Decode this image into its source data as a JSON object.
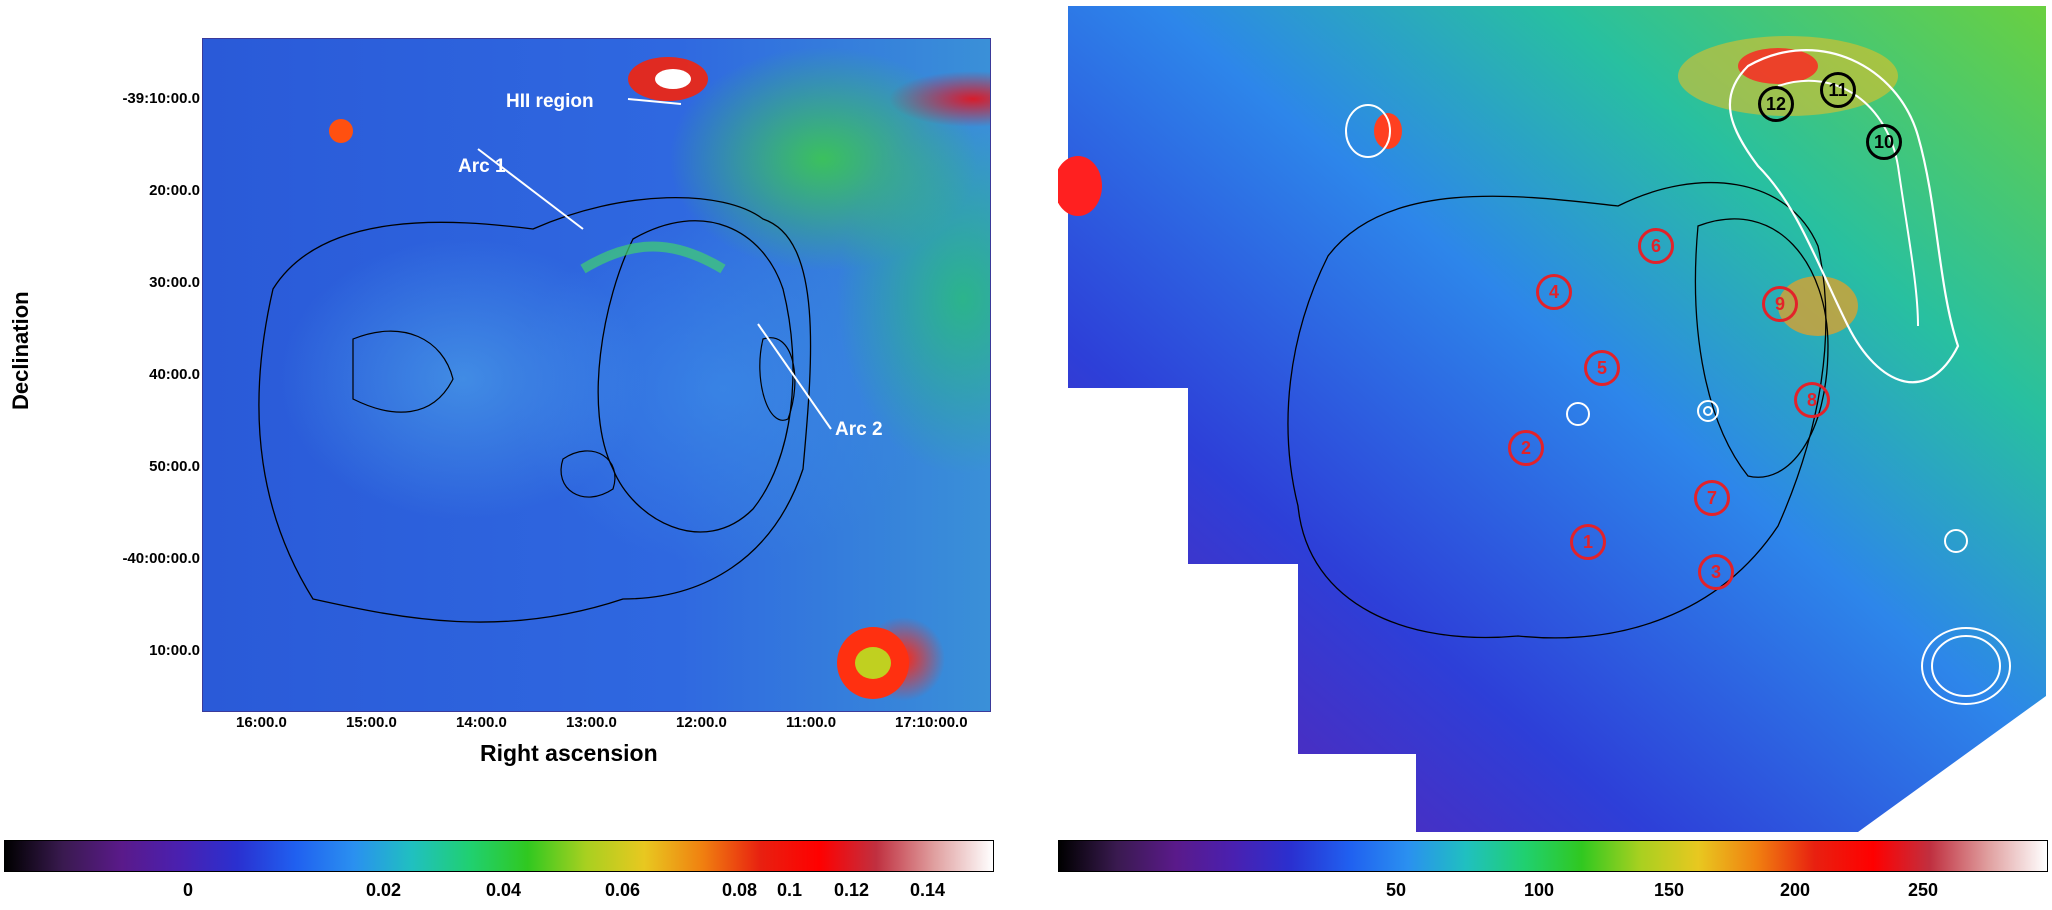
{
  "left_panel": {
    "annotations": [
      {
        "text": "HII region"
      },
      {
        "text": "Arc 1"
      },
      {
        "text": "Arc 2"
      }
    ],
    "ylabel": "Declination",
    "xlabel": "Right ascension",
    "y_ticks": [
      "-39:10:00.0",
      "20:00.0",
      "30:00.0",
      "40:00.0",
      "50:00.0",
      "-40:00:00.0",
      "10:00.0"
    ],
    "x_ticks": [
      "16:00.0",
      "15:00.0",
      "14:00.0",
      "13:00.0",
      "12:00.0",
      "11:00.0",
      "17:10:00.0"
    ]
  },
  "right_panel": {
    "red_markers": [
      "1",
      "2",
      "3",
      "4",
      "5",
      "6",
      "7",
      "8",
      "9"
    ],
    "black_markers": [
      "10",
      "11",
      "12"
    ]
  },
  "colorbars": {
    "left_ticks": [
      "0",
      "0.02",
      "0.04",
      "0.06",
      "0.08",
      "0.1",
      "0.12",
      "0.14"
    ],
    "right_ticks": [
      "50",
      "100",
      "150",
      "200",
      "250"
    ],
    "colors": [
      "#000000",
      "#3a1a50",
      "#5a1a8a",
      "#4a20b0",
      "#2a30d0",
      "#2060f0",
      "#2a90f0",
      "#20c0c0",
      "#20d070",
      "#30c820",
      "#a8d020",
      "#e8c820",
      "#f08010",
      "#e82010",
      "#ff0000",
      "#c03040",
      "#e0a0a0",
      "#ffffff"
    ]
  },
  "colors": {
    "annotation": "#ffffff",
    "red_marker": "#e2222a",
    "black_marker": "#000000"
  }
}
